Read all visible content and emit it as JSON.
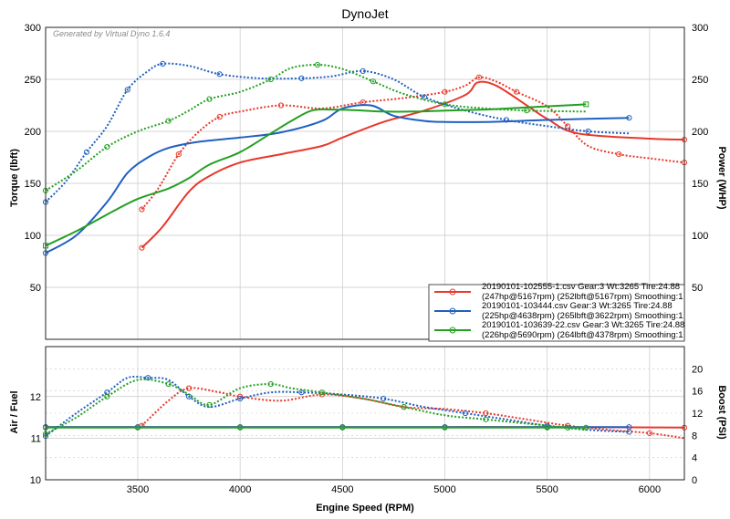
{
  "window": {
    "title": "DynoJet",
    "watermark": "Generated by Virtual Dyno 1.6.4"
  },
  "chart_data": [
    {
      "type": "line",
      "panel": "top",
      "title": "DynoJet",
      "xlabel": "Engine Speed (RPM)",
      "ylabel": "Torque (lbft)",
      "y2label": "Power (WHP)",
      "xlim": [
        3050,
        6170
      ],
      "ylim": [
        0,
        300
      ],
      "y2lim": [
        0,
        300
      ],
      "x_ticks": [
        3500,
        4000,
        4500,
        5000,
        5500,
        6000
      ],
      "y_ticks": [
        50,
        100,
        150,
        200,
        250,
        300
      ],
      "y2_ticks": [
        50,
        100,
        150,
        200,
        250,
        300
      ],
      "grid": true,
      "legend_position": "bottom-right",
      "series": [
        {
          "name": "20190101-102555-1.csv Gear:3 Wt:3265 Tire:24.88",
          "name2": "(247hp@5167rpm) (252lbft@5167rpm) Smoothing:1",
          "color": "#e8382a",
          "power_x": [
            3520,
            3620,
            3750,
            3850,
            4000,
            4200,
            4400,
            4500,
            4700,
            4900,
            5100,
            5160,
            5250,
            5400,
            5500,
            5650,
            6000,
            6170
          ],
          "power_y": [
            88,
            108,
            142,
            157,
            170,
            178,
            186,
            194,
            209,
            220,
            235,
            247,
            244,
            225,
            212,
            198,
            193,
            192
          ],
          "torque_x": [
            3520,
            3600,
            3700,
            3800,
            3900,
            4000,
            4200,
            4400,
            4600,
            4800,
            5000,
            5100,
            5167,
            5250,
            5350,
            5500,
            5600,
            5700,
            5850,
            6000,
            6170
          ],
          "torque_y": [
            125,
            145,
            178,
            200,
            214,
            219,
            225,
            222,
            228,
            232,
            238,
            244,
            252,
            248,
            238,
            224,
            205,
            186,
            178,
            174,
            170
          ]
        },
        {
          "name": "20190101-103444.csv Gear:3 Wt:3265 Tire:24.88",
          "name2": "(225hp@4638rpm) (265lbft@3622rpm) Smoothing:1",
          "color": "#2060c0",
          "power_x": [
            3050,
            3200,
            3350,
            3450,
            3550,
            3650,
            3800,
            4000,
            4200,
            4400,
            4500,
            4638,
            4750,
            4900,
            5000,
            5200,
            5500,
            5700,
            5900
          ],
          "power_y": [
            83,
            100,
            132,
            160,
            175,
            184,
            190,
            194,
            199,
            210,
            222,
            225,
            215,
            210,
            209,
            209,
            211,
            212,
            213
          ],
          "torque_x": [
            3050,
            3150,
            3250,
            3350,
            3450,
            3550,
            3622,
            3750,
            3900,
            4100,
            4300,
            4450,
            4600,
            4750,
            4900,
            5100,
            5300,
            5500,
            5700,
            5900
          ],
          "torque_y": [
            132,
            152,
            180,
            205,
            240,
            258,
            265,
            263,
            255,
            251,
            251,
            253,
            258,
            250,
            233,
            220,
            211,
            205,
            200,
            198
          ]
        },
        {
          "name": "20190101-103639-22.csv Gear:3 Wt:3265 Tire:24.88",
          "name2": "(226hp@5690rpm) (264lbft@4378rpm) Smoothing:1",
          "color": "#22a022",
          "power_x": [
            3050,
            3200,
            3350,
            3500,
            3650,
            3750,
            3850,
            4000,
            4150,
            4250,
            4350,
            4450,
            4600,
            4700,
            4850,
            5000,
            5200,
            5400,
            5690
          ],
          "power_y": [
            90,
            104,
            120,
            135,
            145,
            155,
            168,
            180,
            198,
            210,
            220,
            221,
            220,
            219,
            219,
            220,
            221,
            223,
            226
          ],
          "torque_x": [
            3050,
            3200,
            3350,
            3500,
            3650,
            3750,
            3850,
            4000,
            4150,
            4250,
            4378,
            4500,
            4650,
            4800,
            5000,
            5200,
            5400,
            5690
          ],
          "torque_y": [
            143,
            162,
            185,
            200,
            210,
            220,
            231,
            238,
            250,
            261,
            264,
            260,
            248,
            236,
            226,
            222,
            220,
            219
          ]
        }
      ]
    },
    {
      "type": "line",
      "panel": "bottom",
      "xlabel": "Engine Speed (RPM)",
      "ylabel": "Air / Fuel",
      "y2label": "Boost (PSI)",
      "xlim": [
        3050,
        6170
      ],
      "ylim": [
        10,
        13.2
      ],
      "y2lim": [
        0,
        24
      ],
      "y_ticks": [
        10,
        11,
        12
      ],
      "y2_ticks": [
        0,
        4,
        8,
        12,
        16,
        20
      ],
      "grid": true,
      "series": [
        {
          "name": "20190101-102555-1.csv",
          "color": "#e8382a",
          "afr_x": [
            3520,
            3650,
            3750,
            3900,
            4000,
            4200,
            4400,
            4600,
            4800,
            5000,
            5200,
            5400,
            5600,
            5800,
            6000,
            6170
          ],
          "afr_y": [
            11.3,
            11.9,
            12.2,
            12.1,
            12.0,
            11.9,
            12.05,
            11.95,
            11.75,
            11.7,
            11.6,
            11.45,
            11.3,
            11.2,
            11.12,
            11.0
          ],
          "boost_x": [
            3050,
            3500,
            4000,
            4500,
            5000,
            5500,
            6170
          ],
          "boost_y": [
            9.5,
            9.5,
            9.5,
            9.5,
            9.5,
            9.5,
            9.4
          ]
        },
        {
          "name": "20190101-103444.csv",
          "color": "#2060c0",
          "afr_x": [
            3050,
            3200,
            3350,
            3450,
            3550,
            3650,
            3750,
            3850,
            4000,
            4150,
            4300,
            4500,
            4700,
            4900,
            5100,
            5300,
            5500,
            5700,
            5900
          ],
          "afr_y": [
            11.05,
            11.6,
            12.1,
            12.45,
            12.45,
            12.4,
            12.0,
            11.75,
            11.95,
            12.1,
            12.1,
            12.05,
            11.95,
            11.75,
            11.6,
            11.45,
            11.3,
            11.2,
            11.15
          ],
          "boost_x": [
            3050,
            3500,
            4000,
            4500,
            5000,
            5500,
            5900
          ],
          "boost_y": [
            9.5,
            9.5,
            9.5,
            9.5,
            9.5,
            9.5,
            9.5
          ]
        },
        {
          "name": "20190101-103639-22.csv",
          "color": "#22a022",
          "afr_x": [
            3050,
            3200,
            3350,
            3500,
            3650,
            3750,
            3850,
            4000,
            4150,
            4250,
            4400,
            4600,
            4800,
            5000,
            5200,
            5400,
            5600,
            5690
          ],
          "afr_y": [
            11.1,
            11.5,
            12.0,
            12.4,
            12.3,
            12.05,
            11.8,
            12.2,
            12.3,
            12.2,
            12.1,
            11.95,
            11.75,
            11.55,
            11.45,
            11.35,
            11.25,
            11.2
          ],
          "boost_x": [
            3050,
            3500,
            4000,
            4500,
            5000,
            5500,
            5690
          ],
          "boost_y": [
            9.4,
            9.4,
            9.4,
            9.4,
            9.4,
            9.4,
            9.4
          ]
        }
      ]
    }
  ]
}
